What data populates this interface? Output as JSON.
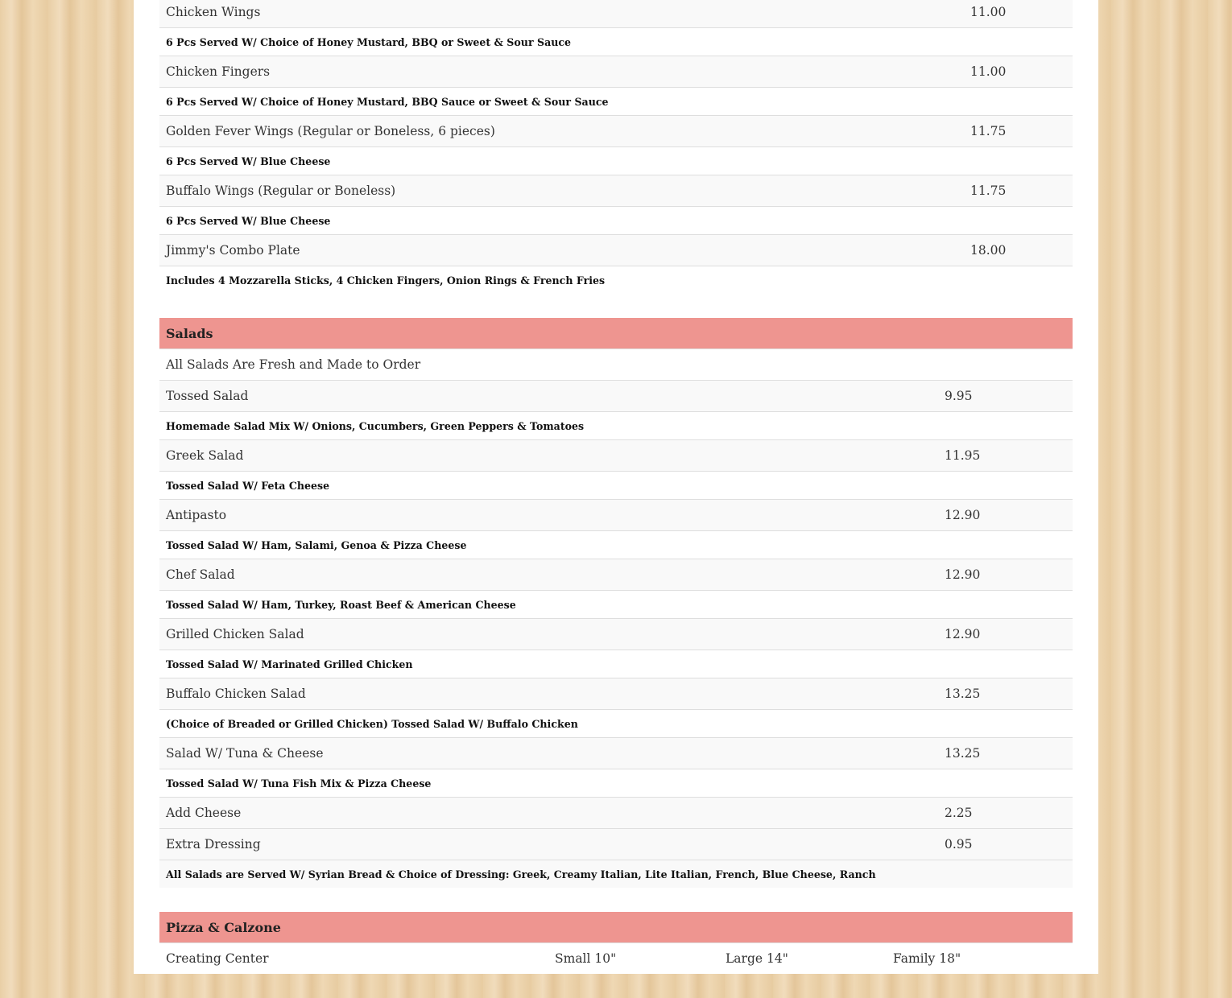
{
  "appetizers": {
    "rows": [
      {
        "type": "item",
        "name": "Chicken Wings",
        "price": "11.00"
      },
      {
        "type": "desc",
        "text": "6 Pcs Served W/ Choice of Honey Mustard, BBQ or Sweet & Sour Sauce"
      },
      {
        "type": "item",
        "name": "Chicken Fingers",
        "price": "11.00"
      },
      {
        "type": "desc",
        "text": "6 Pcs Served W/ Choice of Honey Mustard, BBQ Sauce or Sweet & Sour Sauce"
      },
      {
        "type": "item",
        "name": "Golden Fever Wings (Regular or Boneless, 6 pieces)",
        "price": "11.75"
      },
      {
        "type": "desc",
        "text": "6 Pcs Served W/ Blue Cheese"
      },
      {
        "type": "item",
        "name": "Buffalo Wings (Regular or Boneless)",
        "price": "11.75"
      },
      {
        "type": "desc",
        "text": "6 Pcs Served W/ Blue Cheese"
      },
      {
        "type": "item",
        "name": "Jimmy's Combo Plate",
        "price": "18.00"
      },
      {
        "type": "desc",
        "text": "Includes 4 Mozzarella Sticks, 4 Chicken Fingers, Onion Rings & French Fries"
      }
    ]
  },
  "salads": {
    "title": "Salads",
    "intro": "All Salads Are Fresh and Made to Order",
    "rows": [
      {
        "type": "item",
        "name": "Tossed Salad",
        "price": "9.95"
      },
      {
        "type": "desc",
        "text": "Homemade Salad Mix W/ Onions, Cucumbers, Green Peppers & Tomatoes"
      },
      {
        "type": "item",
        "name": "Greek Salad",
        "price": "11.95"
      },
      {
        "type": "desc",
        "text": "Tossed Salad W/ Feta Cheese"
      },
      {
        "type": "item",
        "name": "Antipasto",
        "price": "12.90"
      },
      {
        "type": "desc",
        "text": "Tossed Salad W/ Ham, Salami, Genoa & Pizza Cheese"
      },
      {
        "type": "item",
        "name": "Chef Salad",
        "price": "12.90"
      },
      {
        "type": "desc",
        "text": "Tossed Salad W/ Ham, Turkey, Roast Beef & American Cheese"
      },
      {
        "type": "item",
        "name": "Grilled Chicken Salad",
        "price": "12.90"
      },
      {
        "type": "desc",
        "text": "Tossed Salad W/ Marinated Grilled Chicken"
      },
      {
        "type": "item",
        "name": "Buffalo Chicken Salad",
        "price": "13.25"
      },
      {
        "type": "desc",
        "text": "(Choice of Breaded or Grilled Chicken) Tossed Salad W/ Buffalo Chicken"
      },
      {
        "type": "item",
        "name": "Salad W/ Tuna & Cheese",
        "price": "13.25"
      },
      {
        "type": "desc",
        "text": "Tossed Salad W/ Tuna Fish Mix & Pizza Cheese"
      },
      {
        "type": "item",
        "name": "Add Cheese",
        "price": "2.25"
      },
      {
        "type": "item",
        "name": "Extra Dressing",
        "price": "0.95"
      },
      {
        "type": "desc",
        "gray": true,
        "text": "All Salads are Served W/ Syrian Bread & Choice of Dressing: Greek, Creamy Italian, Lite Italian, French, Blue Cheese, Ranch"
      }
    ]
  },
  "pizza": {
    "title": "Pizza & Calzone",
    "header": {
      "name": "Creating Center",
      "small": "Small 10\"",
      "large": "Large 14\"",
      "family": "Family 18\""
    }
  },
  "colors": {
    "section_header": "#ee9590"
  }
}
